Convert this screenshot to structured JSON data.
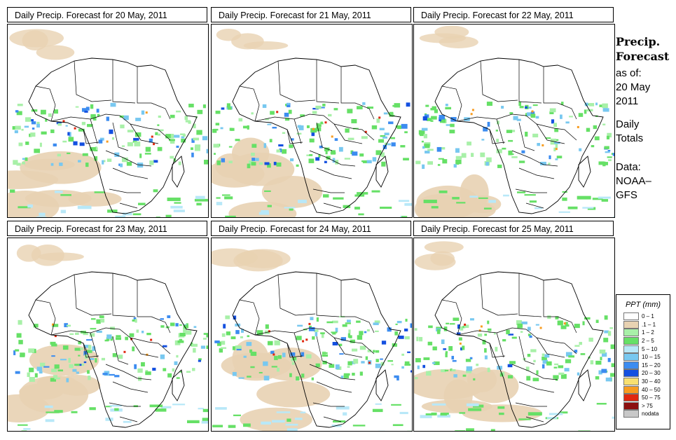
{
  "panels": [
    {
      "title": "Daily Precip. Forecast for  20 May, 2011"
    },
    {
      "title": "Daily Precip. Forecast for  21 May, 2011"
    },
    {
      "title": "Daily Precip. Forecast for  22 May, 2011"
    },
    {
      "title": "Daily Precip. Forecast for  23 May, 2011"
    },
    {
      "title": "Daily Precip. Forecast for  24 May, 2011"
    },
    {
      "title": "Daily Precip. Forecast for  25 May, 2011"
    }
  ],
  "side": {
    "title_line1": "Precip.",
    "title_line2": "Forecast",
    "asof": "as of:",
    "date_line1": "20 May",
    "date_line2": "2011",
    "daily": "Daily",
    "totals": "Totals",
    "data_label": "Data:",
    "source_line1": "NOAA–",
    "source_line2": "GFS"
  },
  "legend": {
    "title": "PPT (mm)",
    "items": [
      {
        "label": "0 – 1",
        "color": "#ffffff"
      },
      {
        "label": ".1 – 1",
        "color": "#e8d2b2"
      },
      {
        "label": "1 – 2",
        "color": "#a8f0a8"
      },
      {
        "label": "2 – 5",
        "color": "#66e066"
      },
      {
        "label": "5 – 10",
        "color": "#b8e8f8"
      },
      {
        "label": "10 – 15",
        "color": "#78c8f0"
      },
      {
        "label": "15 – 20",
        "color": "#3c8cf0"
      },
      {
        "label": "20 – 30",
        "color": "#1450e0"
      },
      {
        "label": "30 – 40",
        "color": "#f8e070"
      },
      {
        "label": "40 – 50",
        "color": "#f89c20"
      },
      {
        "label": "50 – 75",
        "color": "#e02810"
      },
      {
        "label": "> 75",
        "color": "#8c1010"
      },
      {
        "label": "nodata",
        "color": "#c8c8c8"
      }
    ]
  }
}
